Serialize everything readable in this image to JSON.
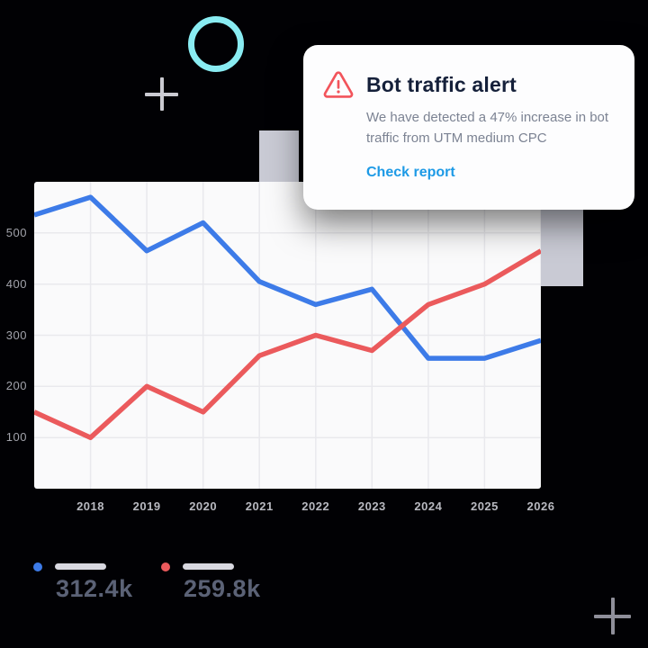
{
  "page": {
    "background": "#010104"
  },
  "decor": {
    "ring_color": "#89ecf2",
    "plus_top_color": "#cbcbd2",
    "plus_bottom_color": "#8f8f9a",
    "rect_color": "#c9cad4"
  },
  "alert": {
    "title": "Bot traffic alert",
    "body": "We have detected a 47% increase in bot traffic from UTM medium CPC",
    "link_label": "Check report",
    "icon_color": "#f2545b",
    "title_color": "#15203a",
    "link_color": "#1d9ae6"
  },
  "legend": {
    "items": [
      {
        "series": "blue",
        "color": "#3d7be8",
        "value": "312.4k"
      },
      {
        "series": "red",
        "color": "#eb5a5c",
        "value": "259.8k"
      }
    ]
  },
  "chart_data": {
    "type": "line",
    "x": [
      2017,
      2018,
      2019,
      2020,
      2021,
      2022,
      2023,
      2024,
      2025,
      2026
    ],
    "x_tick_labels": [
      "2018",
      "2019",
      "2020",
      "2021",
      "2022",
      "2023",
      "2024",
      "2025",
      "2026"
    ],
    "y_ticks": [
      100,
      200,
      300,
      400,
      500
    ],
    "ylim": [
      0,
      600
    ],
    "grid": true,
    "grid_color": "#e9e9ed",
    "background": "#fafafb",
    "legend_position": "bottom-left",
    "series": [
      {
        "name": "blue",
        "color": "#3d7be8",
        "values": [
          535,
          570,
          465,
          520,
          405,
          360,
          390,
          255,
          255,
          290
        ]
      },
      {
        "name": "red",
        "color": "#eb5a5c",
        "values": [
          150,
          100,
          200,
          150,
          260,
          300,
          270,
          360,
          400,
          465
        ]
      }
    ]
  }
}
